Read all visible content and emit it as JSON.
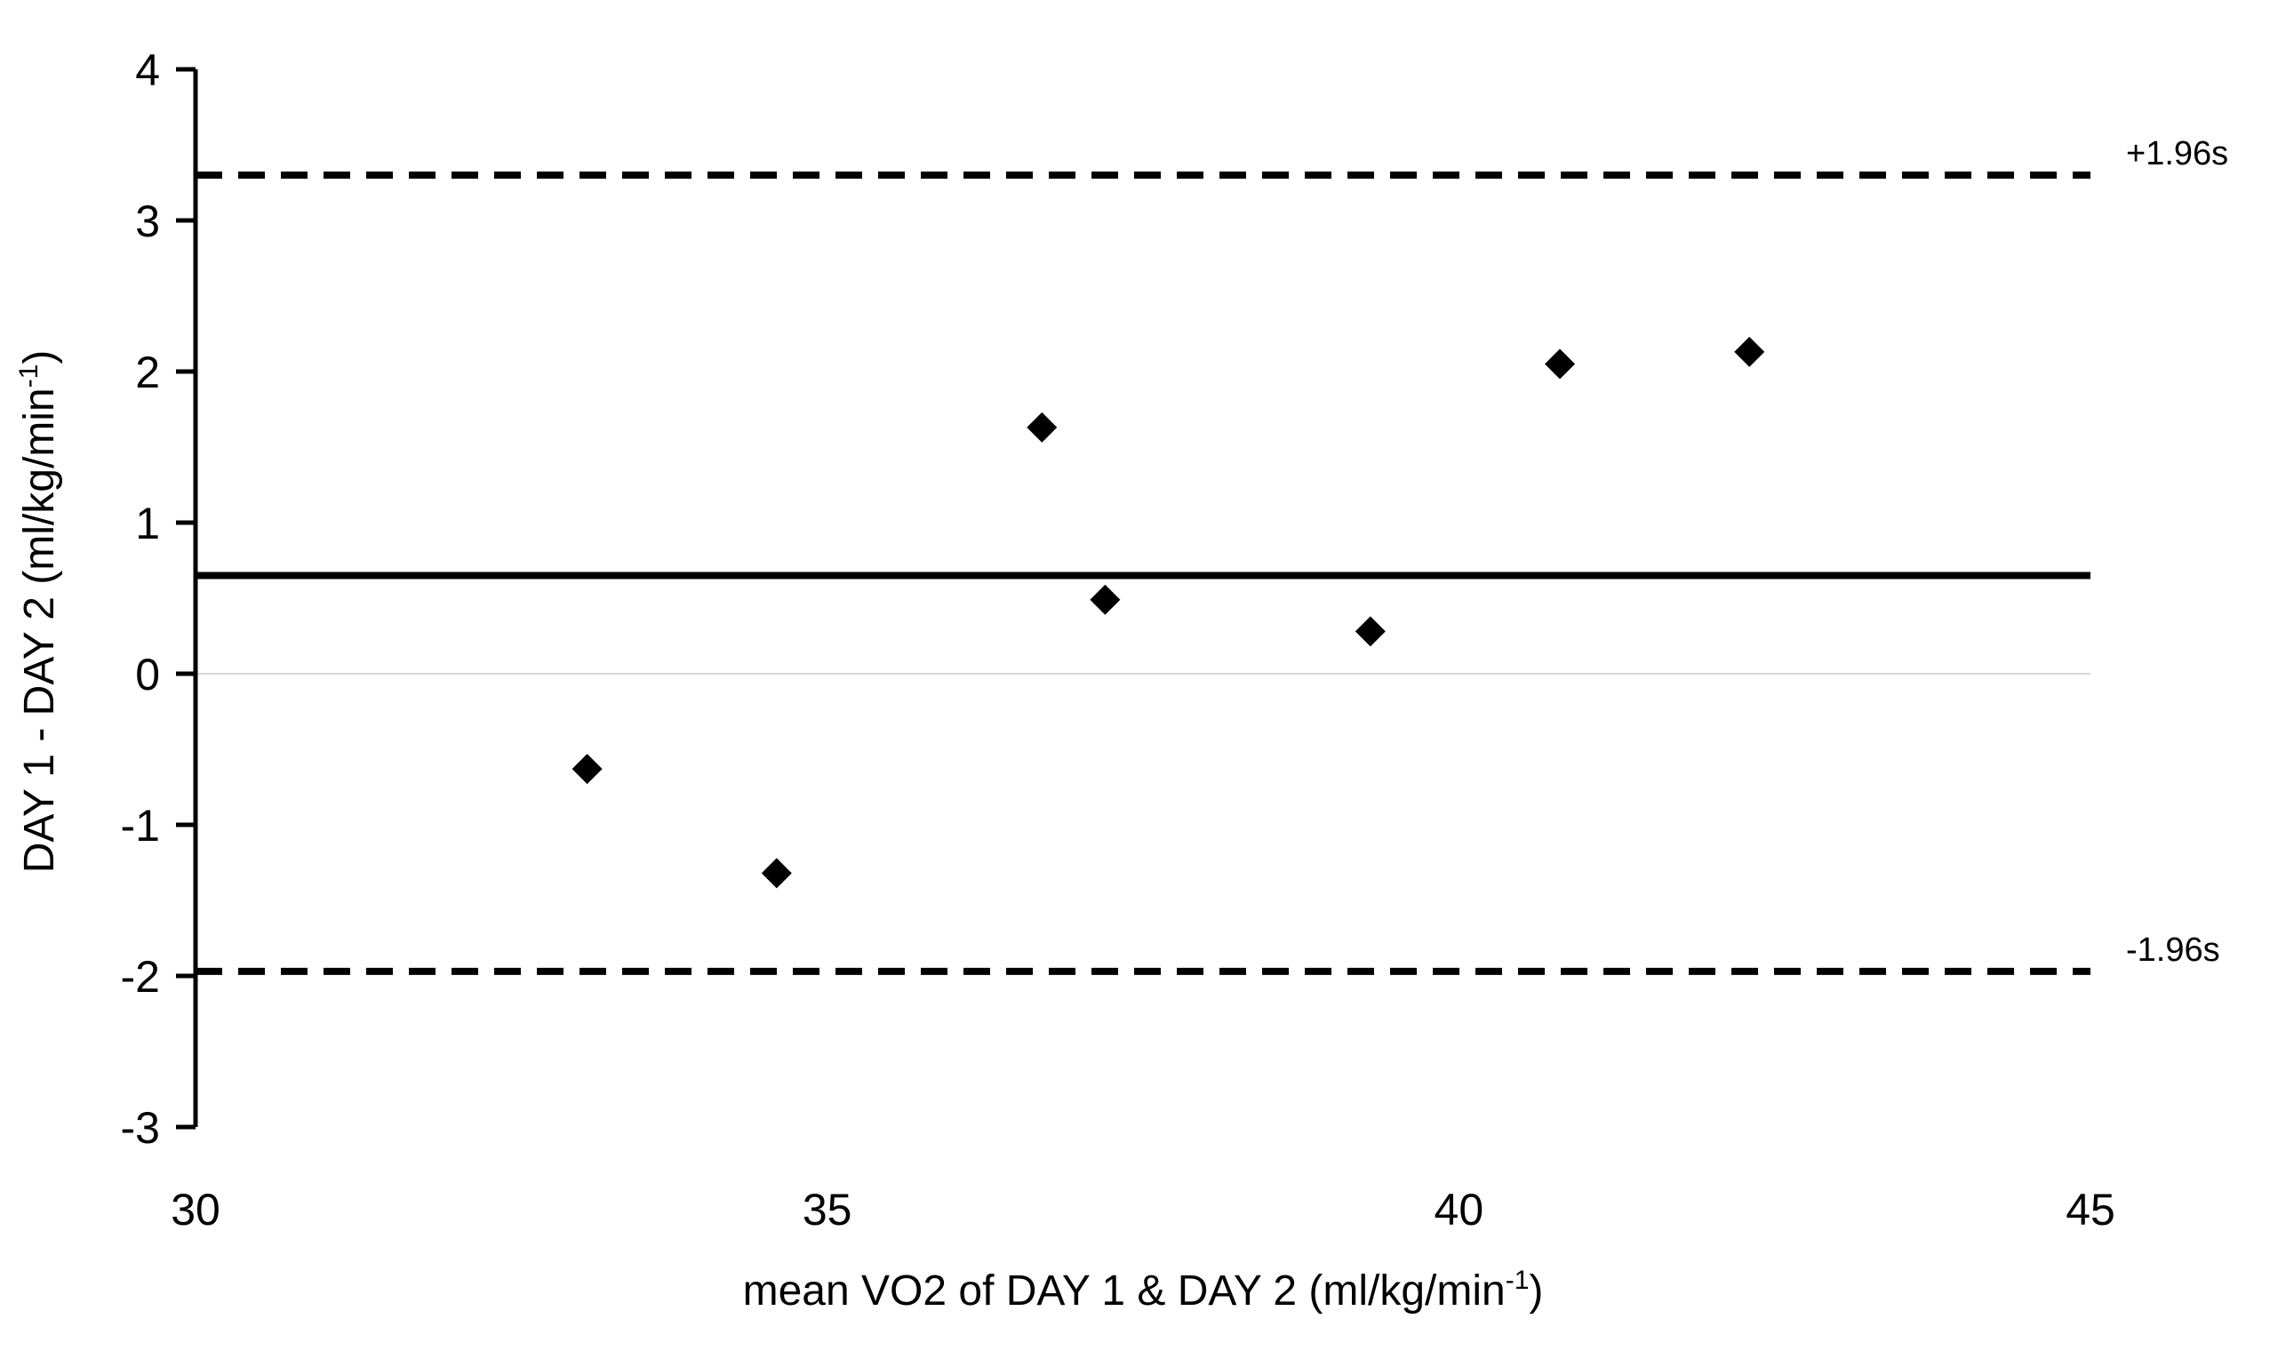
{
  "chart_data": {
    "type": "scatter",
    "title": "",
    "xlabel": {
      "main": "mean VO2 of DAY 1 & DAY 2 (ml/kg/min",
      "sup": "-1",
      "close": ")"
    },
    "ylabel": {
      "main": "DAY 1  - DAY 2 (ml/kg/min",
      "sup": "-1",
      "close": ")"
    },
    "xlim": [
      30,
      45
    ],
    "ylim": [
      -3,
      4
    ],
    "xticks": [
      "30",
      "35",
      "40",
      "45"
    ],
    "yticks": [
      "4",
      "3",
      "2",
      "1",
      "0",
      "-1",
      "-2",
      "-3"
    ],
    "points": [
      {
        "x": 33.1,
        "y": -0.63
      },
      {
        "x": 34.6,
        "y": -1.32
      },
      {
        "x": 36.7,
        "y": 1.63
      },
      {
        "x": 37.2,
        "y": 0.49
      },
      {
        "x": 39.3,
        "y": 0.28
      },
      {
        "x": 40.8,
        "y": 2.05
      },
      {
        "x": 42.3,
        "y": 2.13
      }
    ],
    "reference_lines": [
      {
        "name": "mean-difference",
        "y": 0.65,
        "style": "solid",
        "label": ""
      },
      {
        "name": "upper-limit",
        "y": 3.3,
        "style": "dashed",
        "label": "+1.96s"
      },
      {
        "name": "lower-limit",
        "y": -1.97,
        "style": "dashed",
        "label": "-1.96s"
      },
      {
        "name": "zero",
        "y": 0,
        "style": "faint",
        "label": ""
      }
    ],
    "marker": "diamond",
    "grid": false,
    "legend": "none"
  }
}
